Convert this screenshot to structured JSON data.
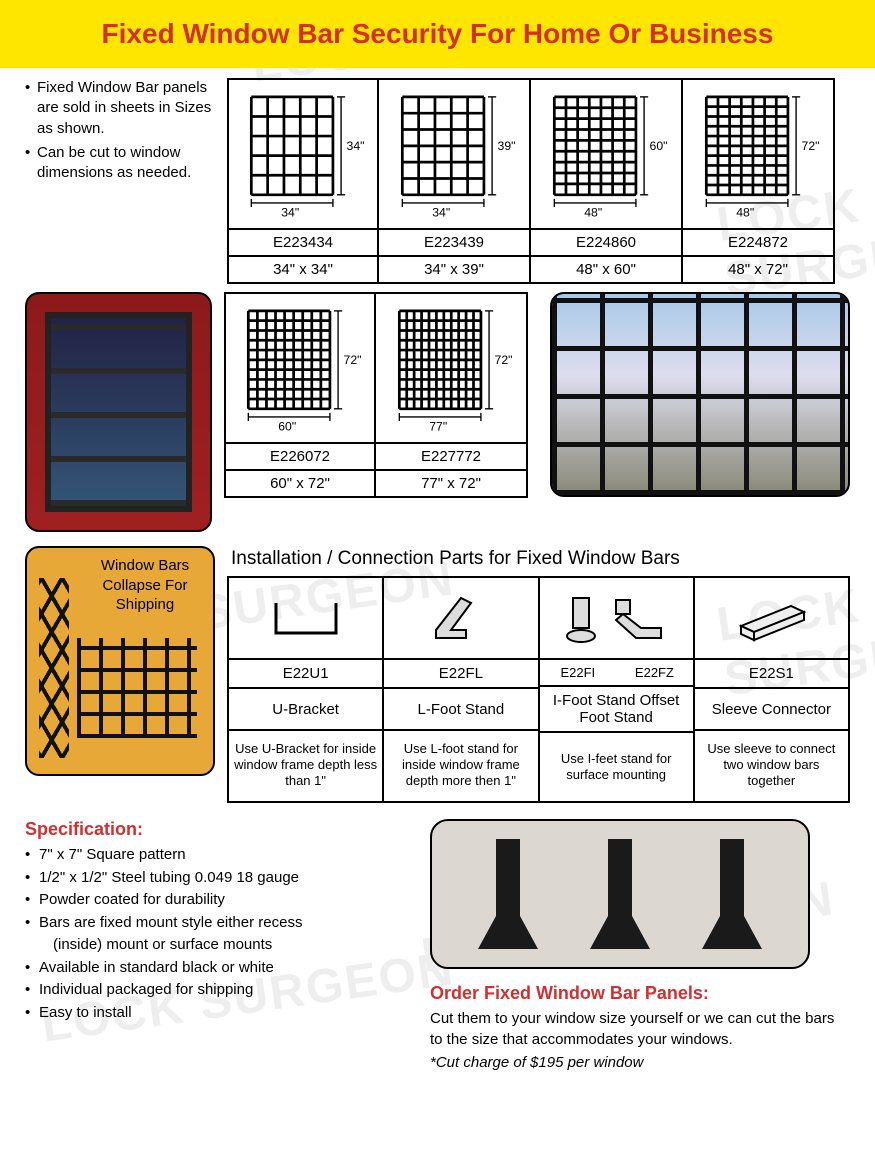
{
  "watermark": "LOCK SURGEON",
  "title": "Fixed Window Bar Security For Home Or Business",
  "intro_bullets": [
    "Fixed Window Bar panels are sold in sheets in Sizes as shown.",
    "Can be cut to window dimensions as needed."
  ],
  "sizes_row1": [
    {
      "code": "E223434",
      "dim": "34\" x 34\"",
      "w": "34\"",
      "h": "34\"",
      "cols": 5,
      "rows": 5
    },
    {
      "code": "E223439",
      "dim": "34\" x 39\"",
      "w": "34\"",
      "h": "39\"",
      "cols": 5,
      "rows": 6
    },
    {
      "code": "E224860",
      "dim": "48\" x 60\"",
      "w": "48\"",
      "h": "60\"",
      "cols": 7,
      "rows": 9
    },
    {
      "code": "E224872",
      "dim": "48\" x 72\"",
      "w": "48\"",
      "h": "72\"",
      "cols": 7,
      "rows": 10
    }
  ],
  "sizes_row2": [
    {
      "code": "E226072",
      "dim": "60\" x 72\"",
      "w": "60\"",
      "h": "72\"",
      "cols": 9,
      "rows": 10
    },
    {
      "code": "E227772",
      "dim": "77\" x 72\"",
      "w": "77\"",
      "h": "72\"",
      "cols": 11,
      "rows": 10
    }
  ],
  "collapse_text": "Window Bars Collapse For Shipping",
  "parts_title": "Installation / Connection Parts for Fixed Window Bars",
  "parts": [
    {
      "code": "E22U1",
      "name": "U-Bracket",
      "desc": "Use U-Bracket for inside window frame depth less than 1\""
    },
    {
      "code": "E22FL",
      "name": "L-Foot Stand",
      "desc": "Use L-foot stand for inside window frame depth more then 1\""
    },
    {
      "code": "E22FI    E22FZ",
      "name": "I-Foot Stand Offset Foot Stand",
      "desc": "Use I-feet stand for surface mounting"
    },
    {
      "code": "E22S1",
      "name": "Sleeve Connector",
      "desc": "Use sleeve to connect two window bars together"
    }
  ],
  "spec_title": "Specification:",
  "spec_items": [
    "7\" x 7\" Square pattern",
    "1/2\" x 1/2\" Steel tubing 0.049  18 gauge",
    "Powder coated for durability",
    "Bars are fixed mount style either recess",
    "(inside) mount or surface mounts",
    "Available in standard black or white",
    "Individual packaged for shipping",
    "Easy to install"
  ],
  "order_title": "Order Fixed Window Bar Panels:",
  "order_text": "Cut them to your window size yourself or we can cut the bars to the size that accommodates your windows.",
  "order_note": "*Cut charge of $195 per window"
}
